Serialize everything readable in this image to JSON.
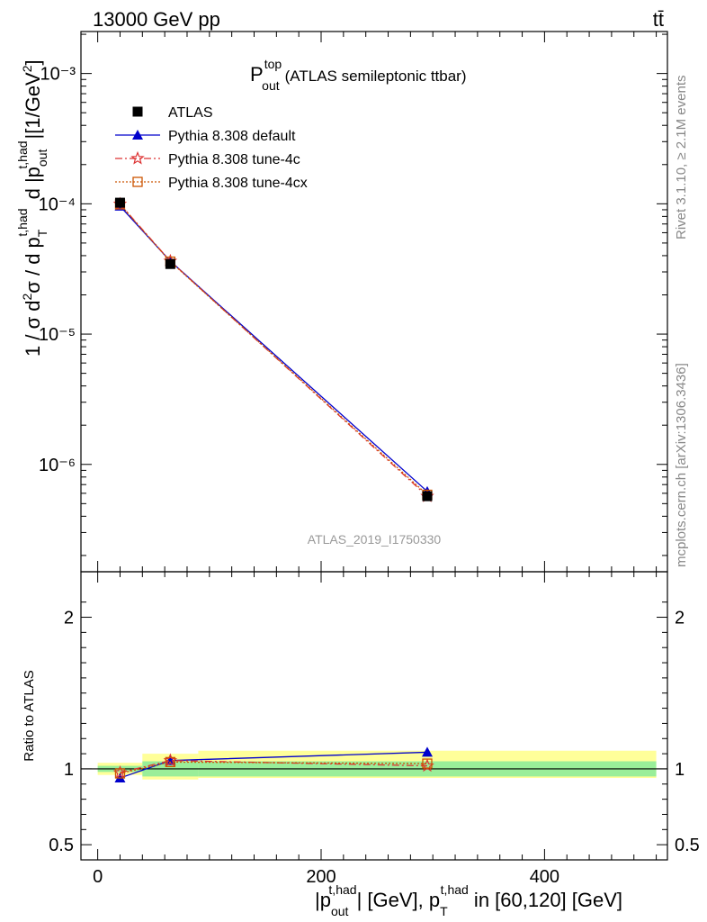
{
  "header": {
    "left": "13000 GeV pp",
    "right": "tt̄"
  },
  "side": {
    "rivet": "Rivet 3.1.10, ≥ 2.1M events",
    "mcplots": "mcplots.cern.ch [arXiv:1306.3436]"
  },
  "chart_data": {
    "type": "line",
    "title": "P_out^top (ATLAS semileptonic ttbar)",
    "title_main": "P",
    "title_sup": "top",
    "title_sub": "out",
    "title_rest": "(ATLAS semileptonic ttbar)",
    "analysis": "ATLAS_2019_I1750330",
    "x": [
      20,
      65,
      295
    ],
    "xlim": [
      -15,
      510
    ],
    "xticks": [
      0,
      200,
      400
    ],
    "xlabel": "|p_out^t,had| [GeV], p_T^t,had in [60,120] [GeV]",
    "ylabel": "1 / σ d²σ / d p_T^t,had d |p_out^t,had| [1/GeV²]",
    "main_ylog": true,
    "main_ylim": [
      1.5e-07,
      0.0021
    ],
    "main_yticks": [
      {
        "value": 1e-06,
        "label": "10⁻⁶"
      },
      {
        "value": 1e-05,
        "label": "10⁻⁵"
      },
      {
        "value": 0.0001,
        "label": "10⁻⁴"
      },
      {
        "value": 0.001,
        "label": "10⁻³"
      }
    ],
    "series": [
      {
        "name": "ATLAS",
        "values": [
          0.000102,
          3.45e-05,
          5.7e-07
        ],
        "color": "#000000",
        "marker": "square",
        "dash": ""
      },
      {
        "name": "Pythia 8.308 default",
        "values": [
          9.6e-05,
          3.63e-05,
          6.2e-07
        ],
        "color": "#0000cc",
        "marker": "triangle",
        "dash": ""
      },
      {
        "name": "Pythia 8.308 tune-4c",
        "values": [
          9.95e-05,
          3.63e-05,
          5.7e-07
        ],
        "color": "#dd3333",
        "marker": "star",
        "dash": "8,3,2,3"
      },
      {
        "name": "Pythia 8.308 tune-4cx",
        "values": [
          9.9e-05,
          3.6e-05,
          5.85e-07
        ],
        "color": "#cc5500",
        "marker": "opensquare",
        "dash": "2,2"
      }
    ],
    "ratio": {
      "ylabel": "Ratio to ATLAS",
      "ylim": [
        0.4,
        2.3
      ],
      "yticks": [
        0.5,
        1,
        2
      ],
      "bins": [
        [
          0,
          40
        ],
        [
          40,
          90
        ],
        [
          90,
          500
        ]
      ],
      "band_inner": [
        [
          0.98,
          1.02
        ],
        [
          0.95,
          1.05
        ],
        [
          0.95,
          1.05
        ]
      ],
      "band_outer": [
        [
          0.96,
          1.04
        ],
        [
          0.93,
          1.1
        ],
        [
          0.94,
          1.12
        ]
      ],
      "series": [
        {
          "name": "Pythia 8.308 default",
          "values": [
            0.94,
            1.055,
            1.11
          ]
        },
        {
          "name": "Pythia 8.308 tune-4c",
          "values": [
            0.975,
            1.055,
            1.02
          ]
        },
        {
          "name": "Pythia 8.308 tune-4cx",
          "values": [
            0.97,
            1.045,
            1.035
          ]
        }
      ]
    }
  }
}
